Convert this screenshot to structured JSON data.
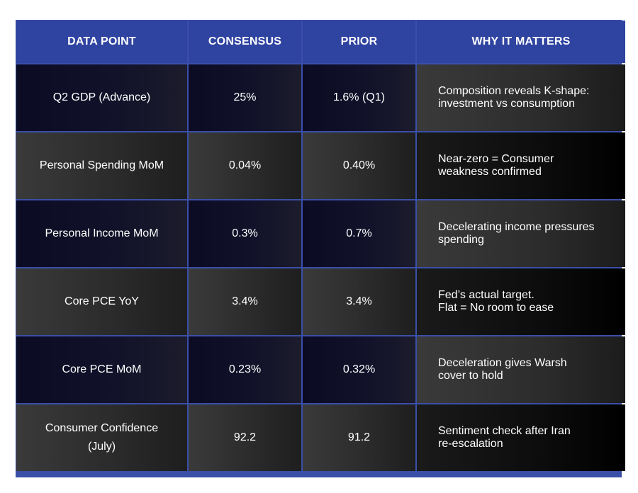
{
  "chart_data": {
    "type": "table",
    "columns": [
      "DATA POINT",
      "CONSENSUS",
      "PRIOR",
      "WHY IT MATTERS"
    ],
    "rows": [
      {
        "data_point": "Q2 GDP (Advance)",
        "consensus": "25%",
        "prior": "1.6% (Q1)",
        "why_line1": "Composition reveals K-shape:",
        "why_line2": "investment vs consumption"
      },
      {
        "data_point": "Personal Spending MoM",
        "consensus": "0.04%",
        "prior": "0.40%",
        "why_line1": "Near-zero = Consumer",
        "why_line2": "weakness confirmed"
      },
      {
        "data_point": "Personal Income MoM",
        "consensus": "0.3%",
        "prior": "0.7%",
        "why_line1": "Decelerating income pressures",
        "why_line2": "spending"
      },
      {
        "data_point": "Core PCE YoY",
        "consensus": "3.4%",
        "prior": "3.4%",
        "why_line1": "Fed’s actual target.",
        "why_line2": "Flat = No room to ease"
      },
      {
        "data_point": "Core PCE MoM",
        "consensus": "0.23%",
        "prior": "0.32%",
        "why_line1": "Deceleration gives Warsh",
        "why_line2": "cover to hold"
      },
      {
        "data_point": "Consumer Confidence",
        "data_point_line2": "(July)",
        "consensus": "92.2",
        "prior": "91.2",
        "why_line1": "Sentiment check after Iran",
        "why_line2": "re-escalation"
      }
    ]
  }
}
